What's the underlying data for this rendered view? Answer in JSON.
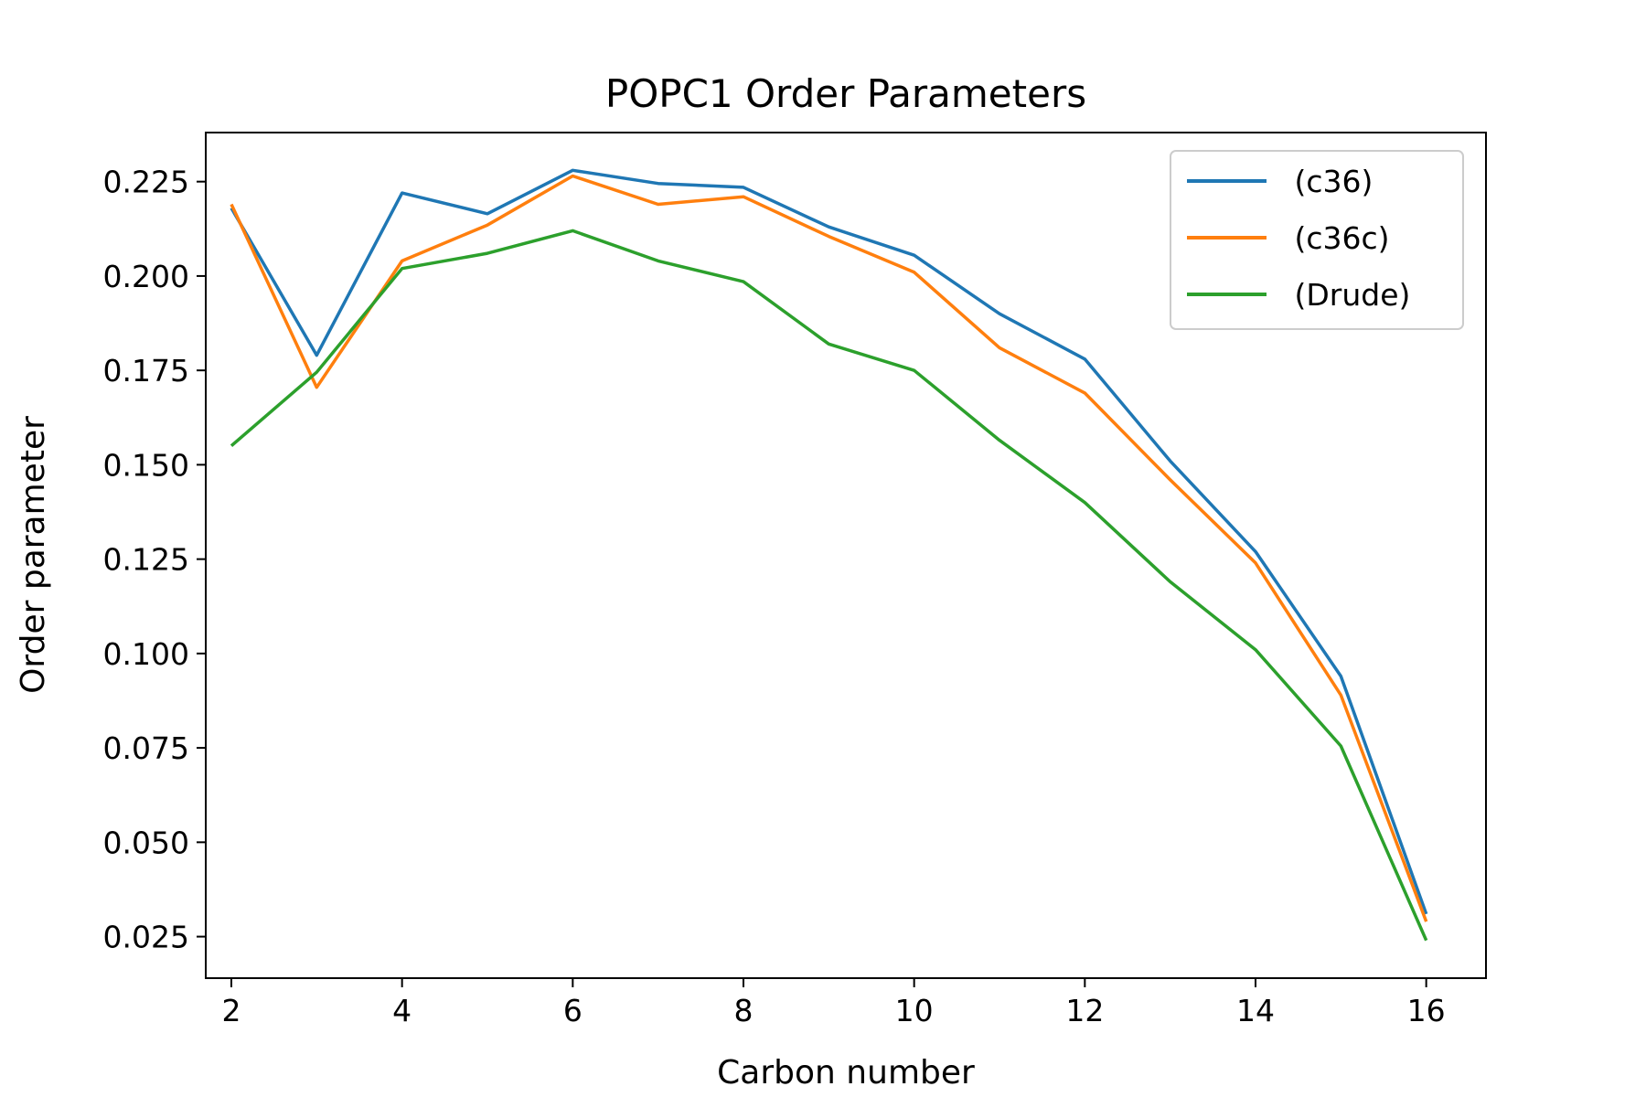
{
  "chart_data": {
    "type": "line",
    "title": "POPC1 Order Parameters",
    "xlabel": "Carbon number",
    "ylabel": "Order parameter",
    "x": [
      2,
      3,
      4,
      5,
      6,
      7,
      8,
      9,
      10,
      11,
      12,
      13,
      14,
      15,
      16
    ],
    "xlim": [
      1.7,
      16.7
    ],
    "ylim": [
      0.014,
      0.238
    ],
    "xticks": [
      "2",
      "4",
      "6",
      "8",
      "10",
      "12",
      "14",
      "16"
    ],
    "yticks": [
      "0.025",
      "0.050",
      "0.075",
      "0.100",
      "0.125",
      "0.150",
      "0.175",
      "0.200",
      "0.225"
    ],
    "grid": false,
    "legend_position": "top-right",
    "series": [
      {
        "name": " (c36)",
        "color": "#1f77b4",
        "values": [
          0.218,
          0.179,
          0.222,
          0.2165,
          0.228,
          0.2245,
          0.2235,
          0.213,
          0.2055,
          0.19,
          0.178,
          0.151,
          0.127,
          0.094,
          0.031
        ]
      },
      {
        "name": " (c36c)",
        "color": "#ff7f0e",
        "values": [
          0.219,
          0.1705,
          0.204,
          0.2135,
          0.2265,
          0.219,
          0.221,
          0.2105,
          0.201,
          0.181,
          0.169,
          0.146,
          0.124,
          0.089,
          0.029
        ]
      },
      {
        "name": " (Drude)",
        "color": "#2ca02c",
        "values": [
          0.155,
          0.1745,
          0.202,
          0.206,
          0.212,
          0.204,
          0.1985,
          0.182,
          0.175,
          0.1565,
          0.14,
          0.119,
          0.101,
          0.0755,
          0.024
        ]
      }
    ]
  }
}
